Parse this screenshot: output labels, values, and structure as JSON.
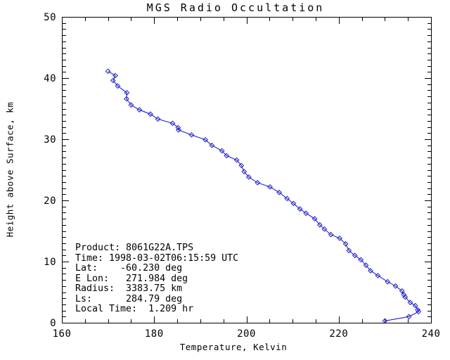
{
  "page": {
    "background": "#ffffff",
    "text_color": "#000000"
  },
  "chart_data": {
    "type": "line",
    "title": "MGS Radio Occultation",
    "xlabel": "Temperature, Kelvin",
    "ylabel": "Height above Surface, km",
    "xlim": [
      160,
      240
    ],
    "ylim": [
      0,
      50
    ],
    "x_major_ticks": [
      160,
      180,
      200,
      220,
      240
    ],
    "x_minor_step": 5,
    "y_major_ticks": [
      0,
      10,
      20,
      30,
      40,
      50
    ],
    "y_minor_step": 1,
    "grid": false,
    "legend_position": "none",
    "axis_color": "#000000",
    "series": [
      {
        "name": "temperature-profile",
        "marker": "open-diamond",
        "color": "#2222cc",
        "points": [
          [
            170.0,
            41.1
          ],
          [
            171.6,
            40.4
          ],
          [
            171.1,
            39.6
          ],
          [
            172.1,
            38.7
          ],
          [
            174.1,
            37.6
          ],
          [
            174.0,
            36.6
          ],
          [
            175.0,
            35.6
          ],
          [
            176.8,
            34.8
          ],
          [
            179.2,
            34.1
          ],
          [
            180.8,
            33.3
          ],
          [
            184.0,
            32.6
          ],
          [
            185.2,
            31.9
          ],
          [
            185.3,
            31.5
          ],
          [
            188.1,
            30.7
          ],
          [
            191.1,
            29.9
          ],
          [
            192.5,
            29.0
          ],
          [
            194.7,
            28.1
          ],
          [
            195.7,
            27.3
          ],
          [
            197.9,
            26.6
          ],
          [
            198.9,
            25.7
          ],
          [
            199.5,
            24.7
          ],
          [
            200.5,
            23.8
          ],
          [
            202.4,
            22.9
          ],
          [
            205.1,
            22.2
          ],
          [
            207.1,
            21.3
          ],
          [
            208.8,
            20.3
          ],
          [
            210.2,
            19.5
          ],
          [
            211.6,
            18.6
          ],
          [
            212.9,
            17.9
          ],
          [
            214.8,
            17.0
          ],
          [
            215.9,
            16.0
          ],
          [
            216.9,
            15.3
          ],
          [
            218.3,
            14.4
          ],
          [
            220.2,
            13.8
          ],
          [
            221.5,
            12.9
          ],
          [
            222.2,
            11.8
          ],
          [
            223.5,
            11.0
          ],
          [
            224.8,
            10.3
          ],
          [
            225.9,
            9.4
          ],
          [
            226.9,
            8.5
          ],
          [
            228.5,
            7.7
          ],
          [
            230.6,
            6.7
          ],
          [
            232.3,
            6.0
          ],
          [
            233.7,
            5.2
          ],
          [
            234.1,
            4.6
          ],
          [
            234.4,
            4.2
          ],
          [
            235.5,
            3.3
          ],
          [
            236.6,
            2.8
          ],
          [
            237.1,
            2.1
          ],
          [
            237.3,
            1.8
          ],
          [
            235.2,
            1.0
          ],
          [
            230.0,
            0.3
          ]
        ]
      }
    ],
    "annotation_lines": [
      "Product: 8061G22A.TPS",
      "Time: 1998-03-02T06:15:59 UTC",
      "Lat:    -60.230 deg",
      "E Lon:   271.984 deg",
      "Radius:  3383.75 km",
      "Ls:      284.79 deg",
      "Local Time:  1.209 hr"
    ]
  }
}
